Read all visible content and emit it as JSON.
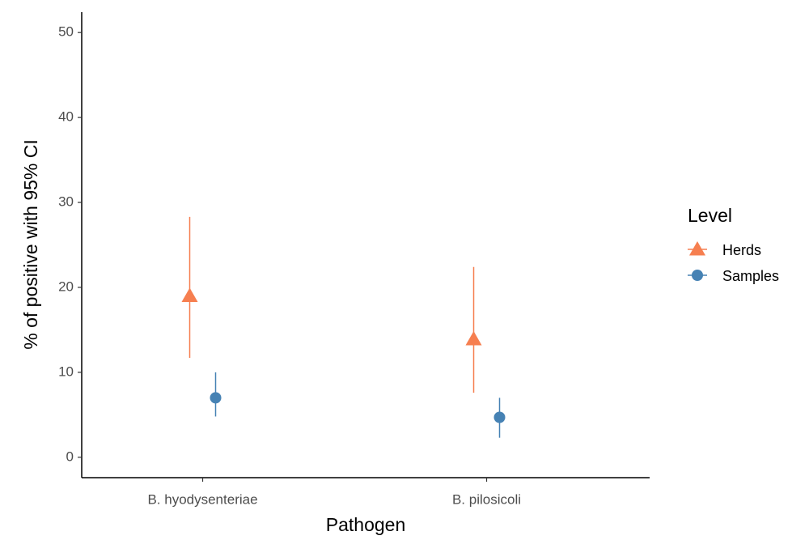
{
  "chart_data": {
    "type": "pointrange",
    "x_label": "Pathogen",
    "y_label": "% of positive with 95% CI",
    "categories": [
      "B. hyodysenteriae",
      "B. pilosicoli"
    ],
    "legend_title": "Level",
    "legend_position": "right",
    "series": [
      {
        "name": "Herds",
        "color": "#f67f50",
        "marker": "triangle",
        "values": [
          19.0,
          13.9
        ],
        "lower": [
          11.7,
          7.6
        ],
        "upper": [
          28.3,
          22.4
        ]
      },
      {
        "name": "Samples",
        "color": "#4682b4",
        "marker": "circle",
        "values": [
          7.0,
          4.7
        ],
        "lower": [
          4.8,
          2.3
        ],
        "upper": [
          10.0,
          7.0
        ]
      }
    ],
    "ylim": [
      -2.4,
      52.4
    ],
    "yticks": [
      0,
      10,
      20,
      30,
      40,
      50
    ],
    "grid": false
  }
}
